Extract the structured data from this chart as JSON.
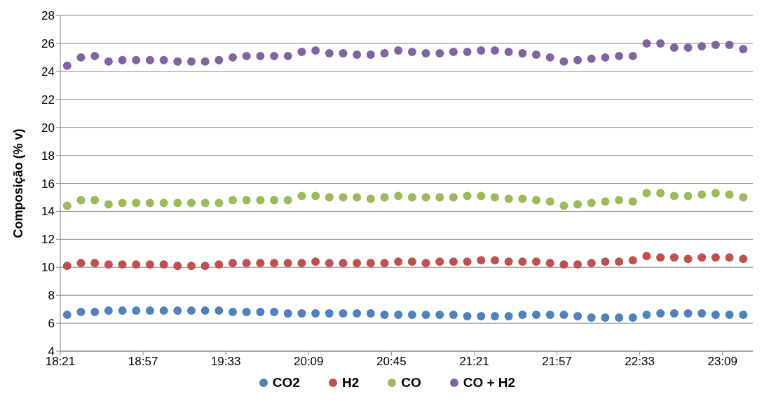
{
  "chart_data": {
    "type": "scatter",
    "ylabel": "Composição (% v)",
    "marker": "circle",
    "grid": "y",
    "legend": "bottom",
    "x": [
      18.4,
      18.5,
      18.6,
      18.7,
      18.8,
      18.9,
      19.0,
      19.1,
      19.2,
      19.3,
      19.4,
      19.5,
      19.6,
      19.7,
      19.8,
      19.9,
      20.0,
      20.1,
      20.2,
      20.3,
      20.4,
      20.5,
      20.6,
      20.7,
      20.8,
      20.9,
      21.0,
      21.1,
      21.2,
      21.3,
      21.4,
      21.5,
      21.6,
      21.7,
      21.8,
      21.9,
      22.0,
      22.1,
      22.2,
      22.3,
      22.4,
      22.5,
      22.6,
      22.7,
      22.8,
      22.9,
      23.0,
      23.1,
      23.2,
      23.3
    ],
    "xlim": [
      18.35,
      23.37
    ],
    "xticks": [
      {
        "value": 18.35,
        "label": "18:21"
      },
      {
        "value": 18.95,
        "label": "18:57"
      },
      {
        "value": 19.55,
        "label": "19:33"
      },
      {
        "value": 20.15,
        "label": "20:09"
      },
      {
        "value": 20.75,
        "label": "20:45"
      },
      {
        "value": 21.35,
        "label": "21:21"
      },
      {
        "value": 21.95,
        "label": "21:57"
      },
      {
        "value": 22.55,
        "label": "22:33"
      },
      {
        "value": 23.15,
        "label": "23:09"
      }
    ],
    "ylim": [
      4,
      28
    ],
    "yticks": [
      4,
      6,
      8,
      10,
      12,
      14,
      16,
      18,
      20,
      22,
      24,
      26,
      28
    ],
    "series": [
      {
        "name": "CO2",
        "color": "#4f81bd",
        "values": [
          6.6,
          6.8,
          6.8,
          6.9,
          6.9,
          6.9,
          6.9,
          6.9,
          6.9,
          6.9,
          6.9,
          6.9,
          6.8,
          6.8,
          6.8,
          6.8,
          6.7,
          6.7,
          6.7,
          6.7,
          6.7,
          6.7,
          6.7,
          6.6,
          6.6,
          6.6,
          6.6,
          6.6,
          6.6,
          6.5,
          6.5,
          6.5,
          6.5,
          6.6,
          6.6,
          6.6,
          6.6,
          6.5,
          6.4,
          6.4,
          6.4,
          6.4,
          6.6,
          6.7,
          6.7,
          6.7,
          6.7,
          6.6,
          6.6,
          6.6
        ]
      },
      {
        "name": "H2",
        "color": "#c0504d",
        "values": [
          10.1,
          10.3,
          10.3,
          10.2,
          10.2,
          10.2,
          10.2,
          10.2,
          10.1,
          10.1,
          10.1,
          10.2,
          10.3,
          10.3,
          10.3,
          10.3,
          10.3,
          10.3,
          10.4,
          10.3,
          10.3,
          10.3,
          10.3,
          10.3,
          10.4,
          10.4,
          10.3,
          10.4,
          10.4,
          10.4,
          10.5,
          10.5,
          10.4,
          10.4,
          10.4,
          10.3,
          10.2,
          10.2,
          10.3,
          10.4,
          10.4,
          10.5,
          10.8,
          10.7,
          10.7,
          10.6,
          10.7,
          10.7,
          10.7,
          10.6
        ]
      },
      {
        "name": "CO",
        "color": "#9bbb59",
        "values": [
          14.4,
          14.8,
          14.8,
          14.5,
          14.6,
          14.6,
          14.6,
          14.6,
          14.6,
          14.6,
          14.6,
          14.6,
          14.8,
          14.8,
          14.8,
          14.8,
          14.8,
          15.1,
          15.1,
          15.0,
          15.0,
          15.0,
          14.9,
          15.0,
          15.1,
          15.0,
          15.0,
          15.0,
          15.0,
          15.1,
          15.1,
          15.0,
          14.9,
          14.9,
          14.8,
          14.7,
          14.4,
          14.5,
          14.6,
          14.7,
          14.8,
          14.7,
          15.3,
          15.3,
          15.1,
          15.1,
          15.2,
          15.3,
          15.2,
          15.0
        ]
      },
      {
        "name": "CO + H2",
        "color": "#8064a2",
        "values": [
          24.4,
          25.0,
          25.1,
          24.7,
          24.8,
          24.8,
          24.8,
          24.8,
          24.7,
          24.7,
          24.7,
          24.8,
          25.0,
          25.1,
          25.1,
          25.1,
          25.1,
          25.4,
          25.5,
          25.3,
          25.3,
          25.2,
          25.2,
          25.3,
          25.5,
          25.4,
          25.3,
          25.3,
          25.4,
          25.4,
          25.5,
          25.5,
          25.4,
          25.3,
          25.2,
          25.0,
          24.7,
          24.8,
          24.9,
          25.0,
          25.1,
          25.1,
          26.0,
          26.0,
          25.7,
          25.7,
          25.8,
          25.9,
          25.9,
          25.6
        ]
      }
    ]
  }
}
